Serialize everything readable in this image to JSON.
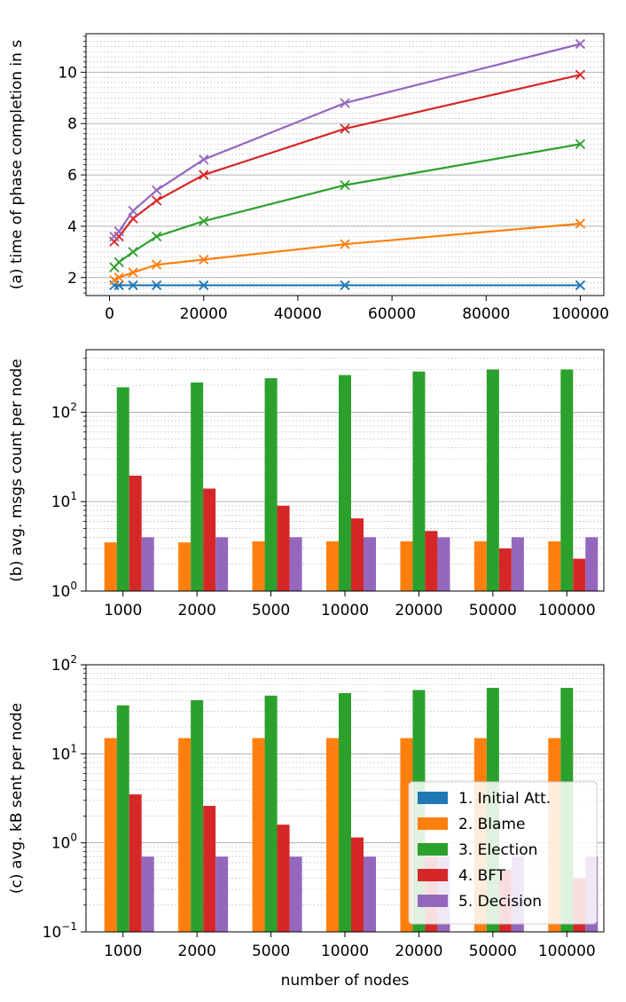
{
  "colors": {
    "initial": "#1f77b4",
    "blame": "#ff7f0e",
    "election": "#2ca02c",
    "bft": "#d62728",
    "decision": "#9467bd"
  },
  "legend": {
    "placement": "lower-right of panel (c)",
    "entries": [
      "1. Initial Att.",
      "2. Blame",
      "3. Election",
      "4. BFT",
      "5. Decision"
    ]
  },
  "chart_data": [
    {
      "type": "line",
      "panel": "a",
      "ylabel": "(a) time of phase completion in s",
      "xlabel": "",
      "xlim": [
        -5000,
        105000
      ],
      "ylim": [
        1.3,
        11.5
      ],
      "xticks": [
        0,
        20000,
        40000,
        60000,
        80000,
        100000
      ],
      "xtick_labels": [
        "0",
        "20000",
        "40000",
        "60000",
        "80000",
        "100000"
      ],
      "yticks": [
        2,
        4,
        6,
        8,
        10
      ],
      "ytick_labels": [
        "2",
        "4",
        "6",
        "8",
        "10"
      ],
      "grid": "horizontal major and minor",
      "marker": "x",
      "x": [
        1000,
        2000,
        5000,
        10000,
        20000,
        50000,
        100000
      ],
      "series": [
        {
          "name": "1. Initial Att.",
          "color_key": "initial",
          "values": [
            1.7,
            1.7,
            1.7,
            1.7,
            1.7,
            1.7,
            1.7
          ]
        },
        {
          "name": "2. Blame",
          "color_key": "blame",
          "values": [
            1.9,
            2.0,
            2.2,
            2.5,
            2.7,
            3.3,
            4.1
          ]
        },
        {
          "name": "3. Election",
          "color_key": "election",
          "values": [
            2.4,
            2.6,
            3.0,
            3.6,
            4.2,
            5.6,
            7.2
          ]
        },
        {
          "name": "4. BFT",
          "color_key": "bft",
          "values": [
            3.4,
            3.6,
            4.3,
            5.0,
            6.0,
            7.8,
            9.9
          ]
        },
        {
          "name": "5. Decision",
          "color_key": "decision",
          "values": [
            3.6,
            3.8,
            4.6,
            5.4,
            6.6,
            8.8,
            11.1
          ]
        }
      ]
    },
    {
      "type": "bar",
      "panel": "b",
      "scale": "log",
      "ylabel": "(b) avg. msgs count per node",
      "xlabel": "",
      "ylim": [
        1,
        500
      ],
      "yticks": [
        1,
        10,
        100
      ],
      "ytick_labels": [
        "10",
        "10",
        "10"
      ],
      "ytick_exponents": [
        "0",
        "1",
        "2"
      ],
      "grid": "horizontal major and minor",
      "categories": [
        "1000",
        "2000",
        "5000",
        "10000",
        "20000",
        "50000",
        "100000"
      ],
      "series": [
        {
          "name": "1. Initial Att.",
          "color_key": "initial",
          "values": [
            1,
            1,
            1,
            1,
            1,
            1,
            1
          ]
        },
        {
          "name": "2. Blame",
          "color_key": "blame",
          "values": [
            3.5,
            3.5,
            3.6,
            3.6,
            3.6,
            3.6,
            3.6
          ]
        },
        {
          "name": "3. Election",
          "color_key": "election",
          "values": [
            190,
            215,
            240,
            260,
            285,
            300,
            300
          ]
        },
        {
          "name": "4. BFT",
          "color_key": "bft",
          "values": [
            19.5,
            14,
            9,
            6.5,
            4.7,
            3.0,
            2.3
          ]
        },
        {
          "name": "5. Decision",
          "color_key": "decision",
          "values": [
            4,
            4,
            4,
            4,
            4,
            4,
            4
          ]
        }
      ]
    },
    {
      "type": "bar",
      "panel": "c",
      "scale": "log",
      "ylabel": "(c) avg. kB sent per node",
      "xlabel": "number of nodes",
      "ylim": [
        0.1,
        100
      ],
      "yticks": [
        0.1,
        1,
        10,
        100
      ],
      "ytick_labels": [
        "10",
        "10",
        "10",
        "10"
      ],
      "ytick_exponents": [
        "−1",
        "0",
        "1",
        "2"
      ],
      "grid": "horizontal major and minor",
      "categories": [
        "1000",
        "2000",
        "5000",
        "10000",
        "20000",
        "50000",
        "100000"
      ],
      "series": [
        {
          "name": "1. Initial Att.",
          "color_key": "initial",
          "values": [
            0.1,
            0.1,
            0.1,
            0.1,
            0.1,
            0.1,
            0.1
          ]
        },
        {
          "name": "2. Blame",
          "color_key": "blame",
          "values": [
            15,
            15,
            15,
            15,
            15,
            15,
            15
          ]
        },
        {
          "name": "3. Election",
          "color_key": "election",
          "values": [
            35,
            40,
            45,
            48,
            52,
            55,
            55
          ]
        },
        {
          "name": "4. BFT",
          "color_key": "bft",
          "values": [
            3.5,
            2.6,
            1.6,
            1.15,
            0.7,
            0.5,
            0.4
          ]
        },
        {
          "name": "5. Decision",
          "color_key": "decision",
          "values": [
            0.7,
            0.7,
            0.7,
            0.7,
            0.7,
            0.7,
            0.7
          ]
        }
      ]
    }
  ]
}
